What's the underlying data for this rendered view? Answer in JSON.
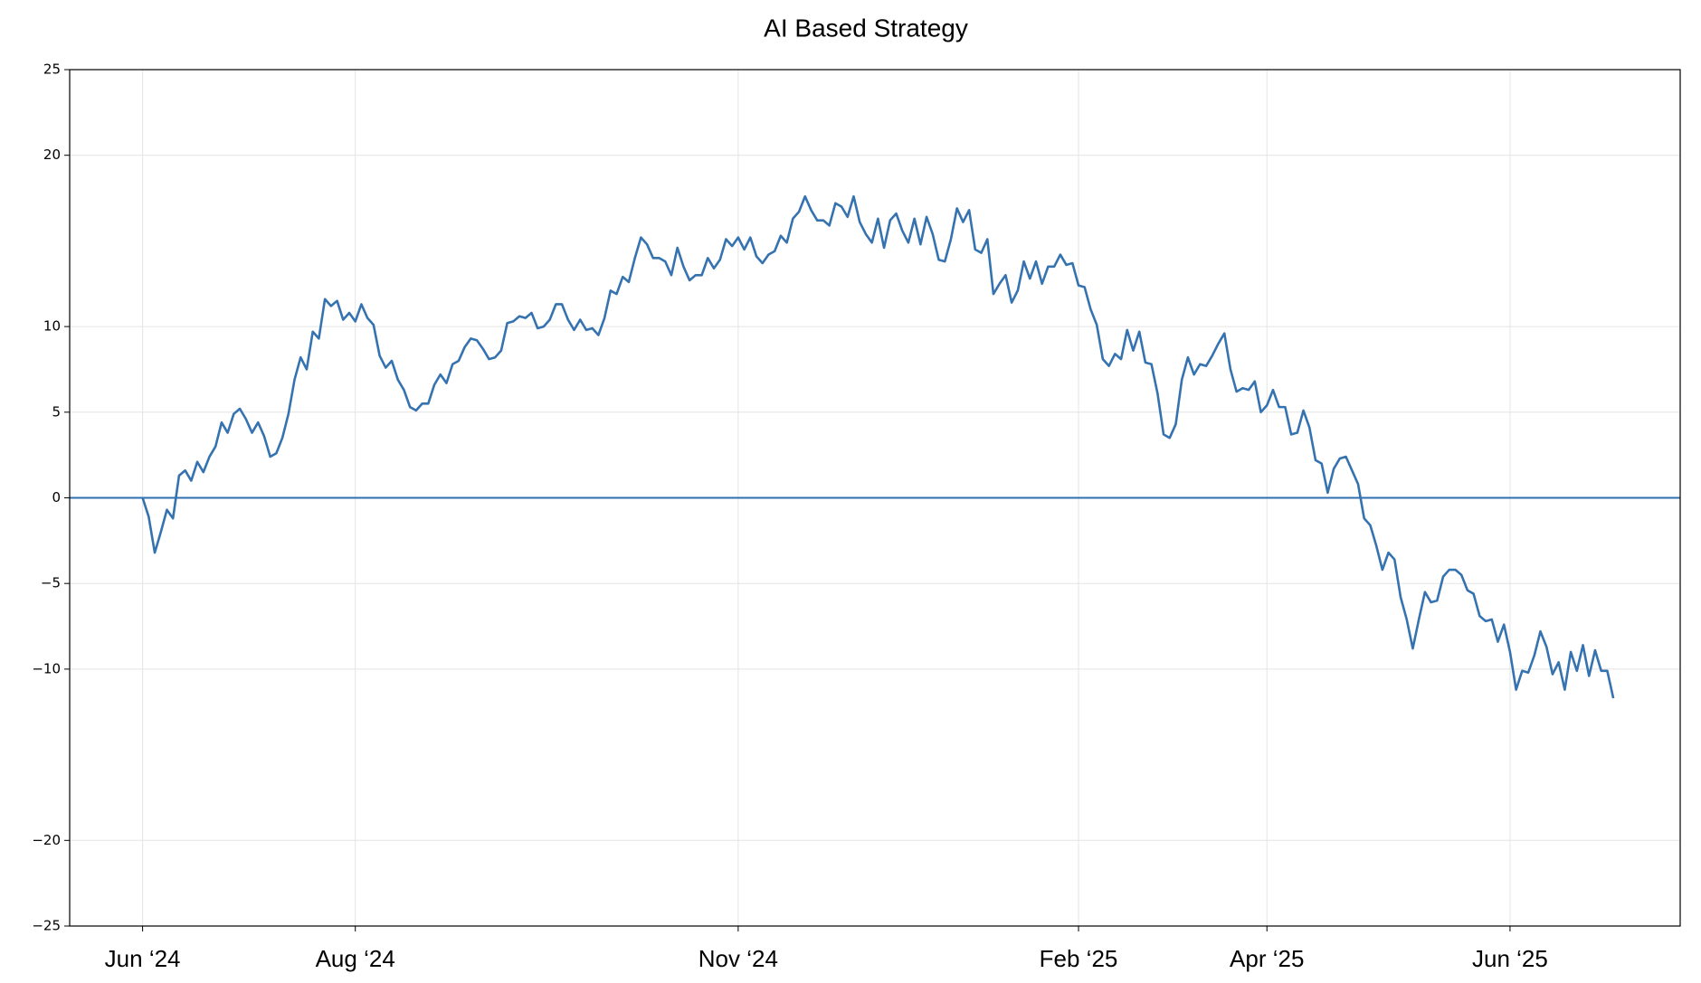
{
  "chart_data": {
    "type": "line",
    "title": "AI Based Strategy",
    "series": [
      {
        "color": "#3572b0",
        "values": [
          0,
          -1.1,
          -3.2,
          -2,
          -0.7,
          -1.2,
          1.3,
          1.6,
          1,
          2.1,
          1.5,
          2.4,
          3,
          4.4,
          3.8,
          4.9,
          5.2,
          4.6,
          3.8,
          4.4,
          3.6,
          2.4,
          2.6,
          3.5,
          4.9,
          6.9,
          8.2,
          7.5,
          9.7,
          9.3,
          11.6,
          11.2,
          11.5,
          10.4,
          10.8,
          10.3,
          11.3,
          10.5,
          10.1,
          8.3,
          7.6,
          8,
          6.9,
          6.3,
          5.3,
          5.1,
          5.5,
          5.5,
          6.6,
          7.2,
          6.7,
          7.8,
          8,
          8.8,
          9.3,
          9.2,
          8.7,
          8.1,
          8.2,
          8.6,
          10.2,
          10.3,
          10.6,
          10.5,
          10.8,
          9.9,
          10,
          10.4,
          11.3,
          11.3,
          10.4,
          9.8,
          10.4,
          9.8,
          9.9,
          9.5,
          10.5,
          12.1,
          11.9,
          12.9,
          12.6,
          14,
          15.2,
          14.8,
          14,
          14,
          13.8,
          13,
          14.6,
          13.5,
          12.7,
          13,
          13,
          14,
          13.4,
          13.9,
          15.1,
          14.7,
          15.2,
          14.5,
          15.2,
          14.1,
          13.7,
          14.2,
          14.4,
          15.3,
          14.9,
          16.3,
          16.7,
          17.6,
          16.8,
          16.2,
          16.2,
          15.9,
          17.2,
          17,
          16.4,
          17.6,
          16.1,
          15.4,
          14.9,
          16.3,
          14.6,
          16.2,
          16.6,
          15.6,
          14.9,
          16.3,
          14.8,
          16.4,
          15.4,
          13.9,
          13.8,
          15.1,
          16.9,
          16.1,
          16.8,
          14.5,
          14.3,
          15.1,
          11.9,
          12.5,
          13,
          11.4,
          12.1,
          13.8,
          12.8,
          13.8,
          12.5,
          13.5,
          13.5,
          14.2,
          13.6,
          13.7,
          12.4,
          12.3,
          11,
          10.1,
          8.1,
          7.7,
          8.4,
          8.1,
          9.8,
          8.6,
          9.7,
          7.9,
          7.8,
          6.1,
          3.7,
          3.5,
          4.3,
          6.9,
          8.2,
          7.2,
          7.8,
          7.7,
          8.3,
          9,
          9.6,
          7.5,
          6.2,
          6.4,
          6.3,
          6.8,
          5,
          5.4,
          6.3,
          5.3,
          5.3,
          3.7,
          3.8,
          5.1,
          4.1,
          2.2,
          2,
          0.3,
          1.7,
          2.3,
          2.4,
          1.6,
          0.8,
          -1.2,
          -1.6,
          -2.8,
          -4.2,
          -3.2,
          -3.6,
          -5.8,
          -7.1,
          -8.8,
          -7.1,
          -5.5,
          -6.1,
          -6,
          -4.6,
          -4.2,
          -4.2,
          -4.5,
          -5.4,
          -5.6,
          -6.9,
          -7.2,
          -7.1,
          -8.4,
          -7.4,
          -9,
          -11.2,
          -10.1,
          -10.2,
          -9.2,
          -7.8,
          -8.7,
          -10.3,
          -9.6,
          -11.2,
          -9,
          -10.1,
          -8.6,
          -10.4,
          -8.9,
          -10.1,
          -10.1,
          -11.7
        ]
      }
    ],
    "xlim": [
      -12,
      253
    ],
    "xticks": [
      {
        "value": 0,
        "label": "Jun ‘24"
      },
      {
        "value": 35,
        "label": "Aug ‘24"
      },
      {
        "value": 98,
        "label": "Nov ‘24"
      },
      {
        "value": 154,
        "label": "Feb ‘25"
      },
      {
        "value": 185,
        "label": "Apr ‘25"
      },
      {
        "value": 225,
        "label": "Jun ‘25"
      }
    ],
    "ylim": [
      -25,
      25
    ],
    "yticks": [
      25,
      20,
      10,
      5,
      0,
      {
        "value": -5,
        "label": "−5"
      },
      {
        "value": -10,
        "label": "−10"
      },
      {
        "value": -20,
        "label": "−20"
      },
      {
        "value": -25,
        "label": "−25"
      }
    ],
    "hline": 0,
    "hline_color": "#2f6fb0",
    "grid": true
  }
}
